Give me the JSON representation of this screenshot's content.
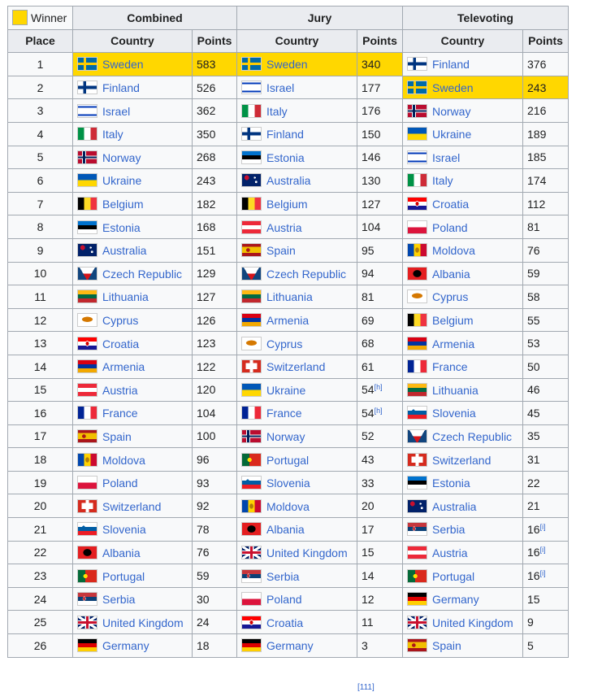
{
  "header_fragment": "",
  "footer_fragment": "[111]",
  "legend": {
    "label": "Winner",
    "color": "#ffd700"
  },
  "headers": {
    "combined": "Combined",
    "jury": "Jury",
    "televoting": "Televoting",
    "place": "Place",
    "country": "Country",
    "points": "Points"
  },
  "rows": [
    {
      "place": "1",
      "combined": {
        "country": "Sweden",
        "points": "583",
        "winner": true
      },
      "jury": {
        "country": "Sweden",
        "points": "340",
        "winner": true
      },
      "tele": {
        "country": "Finland",
        "points": "376"
      }
    },
    {
      "place": "2",
      "combined": {
        "country": "Finland",
        "points": "526"
      },
      "jury": {
        "country": "Israel",
        "points": "177"
      },
      "tele": {
        "country": "Sweden",
        "points": "243",
        "winner": true
      }
    },
    {
      "place": "3",
      "combined": {
        "country": "Israel",
        "points": "362"
      },
      "jury": {
        "country": "Italy",
        "points": "176"
      },
      "tele": {
        "country": "Norway",
        "points": "216"
      }
    },
    {
      "place": "4",
      "combined": {
        "country": "Italy",
        "points": "350"
      },
      "jury": {
        "country": "Finland",
        "points": "150"
      },
      "tele": {
        "country": "Ukraine",
        "points": "189"
      }
    },
    {
      "place": "5",
      "combined": {
        "country": "Norway",
        "points": "268"
      },
      "jury": {
        "country": "Estonia",
        "points": "146"
      },
      "tele": {
        "country": "Israel",
        "points": "185"
      }
    },
    {
      "place": "6",
      "combined": {
        "country": "Ukraine",
        "points": "243"
      },
      "jury": {
        "country": "Australia",
        "points": "130"
      },
      "tele": {
        "country": "Italy",
        "points": "174"
      }
    },
    {
      "place": "7",
      "combined": {
        "country": "Belgium",
        "points": "182"
      },
      "jury": {
        "country": "Belgium",
        "points": "127"
      },
      "tele": {
        "country": "Croatia",
        "points": "112"
      }
    },
    {
      "place": "8",
      "combined": {
        "country": "Estonia",
        "points": "168"
      },
      "jury": {
        "country": "Austria",
        "points": "104"
      },
      "tele": {
        "country": "Poland",
        "points": "81"
      }
    },
    {
      "place": "9",
      "combined": {
        "country": "Australia",
        "points": "151"
      },
      "jury": {
        "country": "Spain",
        "points": "95"
      },
      "tele": {
        "country": "Moldova",
        "points": "76"
      }
    },
    {
      "place": "10",
      "combined": {
        "country": "Czech Republic",
        "points": "129"
      },
      "jury": {
        "country": "Czech Republic",
        "points": "94"
      },
      "tele": {
        "country": "Albania",
        "points": "59"
      }
    },
    {
      "place": "11",
      "combined": {
        "country": "Lithuania",
        "points": "127"
      },
      "jury": {
        "country": "Lithuania",
        "points": "81"
      },
      "tele": {
        "country": "Cyprus",
        "points": "58"
      }
    },
    {
      "place": "12",
      "combined": {
        "country": "Cyprus",
        "points": "126"
      },
      "jury": {
        "country": "Armenia",
        "points": "69"
      },
      "tele": {
        "country": "Belgium",
        "points": "55"
      }
    },
    {
      "place": "13",
      "combined": {
        "country": "Croatia",
        "points": "123"
      },
      "jury": {
        "country": "Cyprus",
        "points": "68"
      },
      "tele": {
        "country": "Armenia",
        "points": "53"
      }
    },
    {
      "place": "14",
      "combined": {
        "country": "Armenia",
        "points": "122"
      },
      "jury": {
        "country": "Switzerland",
        "points": "61"
      },
      "tele": {
        "country": "France",
        "points": "50"
      }
    },
    {
      "place": "15",
      "combined": {
        "country": "Austria",
        "points": "120"
      },
      "jury": {
        "country": "Ukraine",
        "points": "54",
        "note": "[h]"
      },
      "tele": {
        "country": "Lithuania",
        "points": "46"
      }
    },
    {
      "place": "16",
      "combined": {
        "country": "France",
        "points": "104"
      },
      "jury": {
        "country": "France",
        "points": "54",
        "note": "[h]"
      },
      "tele": {
        "country": "Slovenia",
        "points": "45"
      }
    },
    {
      "place": "17",
      "combined": {
        "country": "Spain",
        "points": "100"
      },
      "jury": {
        "country": "Norway",
        "points": "52"
      },
      "tele": {
        "country": "Czech Republic",
        "points": "35"
      }
    },
    {
      "place": "18",
      "combined": {
        "country": "Moldova",
        "points": "96"
      },
      "jury": {
        "country": "Portugal",
        "points": "43"
      },
      "tele": {
        "country": "Switzerland",
        "points": "31"
      }
    },
    {
      "place": "19",
      "combined": {
        "country": "Poland",
        "points": "93"
      },
      "jury": {
        "country": "Slovenia",
        "points": "33"
      },
      "tele": {
        "country": "Estonia",
        "points": "22"
      }
    },
    {
      "place": "20",
      "combined": {
        "country": "Switzerland",
        "points": "92"
      },
      "jury": {
        "country": "Moldova",
        "points": "20"
      },
      "tele": {
        "country": "Australia",
        "points": "21"
      }
    },
    {
      "place": "21",
      "combined": {
        "country": "Slovenia",
        "points": "78"
      },
      "jury": {
        "country": "Albania",
        "points": "17"
      },
      "tele": {
        "country": "Serbia",
        "points": "16",
        "note": "[i]"
      }
    },
    {
      "place": "22",
      "combined": {
        "country": "Albania",
        "points": "76"
      },
      "jury": {
        "country": "United Kingdom",
        "points": "15"
      },
      "tele": {
        "country": "Austria",
        "points": "16",
        "note": "[i]"
      }
    },
    {
      "place": "23",
      "combined": {
        "country": "Portugal",
        "points": "59"
      },
      "jury": {
        "country": "Serbia",
        "points": "14"
      },
      "tele": {
        "country": "Portugal",
        "points": "16",
        "note": "[i]"
      }
    },
    {
      "place": "24",
      "combined": {
        "country": "Serbia",
        "points": "30"
      },
      "jury": {
        "country": "Poland",
        "points": "12"
      },
      "tele": {
        "country": "Germany",
        "points": "15"
      }
    },
    {
      "place": "25",
      "combined": {
        "country": "United Kingdom",
        "points": "24"
      },
      "jury": {
        "country": "Croatia",
        "points": "11"
      },
      "tele": {
        "country": "United Kingdom",
        "points": "9"
      }
    },
    {
      "place": "26",
      "combined": {
        "country": "Germany",
        "points": "18"
      },
      "jury": {
        "country": "Germany",
        "points": "3"
      },
      "tele": {
        "country": "Spain",
        "points": "5"
      }
    }
  ],
  "flags": {
    "Sweden": "linear-gradient(90deg, transparent 30%, #fecc00 30%, #fecc00 44%, transparent 44%), linear-gradient(180deg, #006aa7 40%, #fecc00 40%, #fecc00 60%, #006aa7 60%)",
    "Finland": "linear-gradient(90deg, transparent 28%, #003580 28%, #003580 44%, transparent 44%), linear-gradient(180deg, #ffffff 38%, #003580 38%, #003580 62%, #ffffff 62%)",
    "Israel": "linear-gradient(180deg, #ffffff 10%, #0038b8 10%, #0038b8 22%, #ffffff 22%, #ffffff 78%, #0038b8 78%, #0038b8 90%, #ffffff 90%)",
    "Italy": "linear-gradient(90deg, #009246 33.3%, #ffffff 33.3%, #ffffff 66.6%, #ce2b37 66.6%)",
    "Norway": "linear-gradient(90deg, transparent 27%, #00205b 27%, #00205b 39%, transparent 39%), linear-gradient(180deg, transparent 43%, #00205b 43%, #00205b 57%, transparent 57%), linear-gradient(90deg, transparent 22%, #ffffff 22%, #ffffff 44%, transparent 44%), linear-gradient(180deg, #ba0c2f 36%, #ffffff 36%, #ffffff 64%, #ba0c2f 64%)",
    "Ukraine": "linear-gradient(180deg, #0057b7 50%, #ffd700 50%)",
    "Belgium": "linear-gradient(90deg, #000000 33.3%, #fdda24 33.3%, #fdda24 66.6%, #ef3340 66.6%)",
    "Estonia": "linear-gradient(180deg, #0072ce 33.3%, #000000 33.3%, #000000 66.6%, #ffffff 66.6%)",
    "Australia": "radial-gradient(circle at 25% 30%, #c8102e 0 14%, transparent 15%), radial-gradient(circle at 75% 65%, #ffffff 0 7%, transparent 8%), radial-gradient(circle at 68% 30%, #ffffff 0 6%, transparent 7%), linear-gradient(180deg, #012169, #012169)",
    "Czech Republic": "linear-gradient(60deg, #11457e 34%, transparent 34%), linear-gradient(120deg, transparent 66%, #11457e 66%), linear-gradient(180deg, #ffffff 50%, #d7141a 50%)",
    "Lithuania": "linear-gradient(180deg, #fdb913 33.3%, #006a44 33.3%, #006a44 66.6%, #c1272d 66.6%)",
    "Cyprus": "radial-gradient(ellipse 30% 22% at 50% 45%, #d57800 0 90%, transparent 100%), linear-gradient(180deg, #ffffff, #ffffff)",
    "Croatia": "radial-gradient(ellipse 12% 22% at 50% 50%, #d40000 0 70%, #ffffff 71% 100%, transparent 101%), linear-gradient(180deg, #ff0000 33.3%, #ffffff 33.3%, #ffffff 66.6%, #171796 66.6%)",
    "Armenia": "linear-gradient(180deg, #d90012 33.3%, #0033a0 33.3%, #0033a0 66.6%, #f2a800 66.6%)",
    "Austria": "linear-gradient(180deg, #ed2939 33.3%, #ffffff 33.3%, #ffffff 66.6%, #ed2939 66.6%)",
    "France": "linear-gradient(90deg, #002395 33.3%, #ffffff 33.3%, #ffffff 66.6%, #ed2939 66.6%)",
    "Spain": "radial-gradient(ellipse 12% 18% at 32% 50%, #ad1519 0 80%, transparent 90%), linear-gradient(180deg, #aa151b 25%, #f1bf00 25%, #f1bf00 75%, #aa151b 75%)",
    "Moldova": "radial-gradient(ellipse 12% 25% at 50% 50%, #b07e09 0 80%, transparent 90%), linear-gradient(90deg, #0046ae 33.3%, #ffd200 33.3%, #ffd200 66.6%, #cc092f 66.6%)",
    "Poland": "linear-gradient(180deg, #ffffff 50%, #dc143c 50%)",
    "Switzerland": "linear-gradient(90deg, transparent 41%, #ffffff 41%, #ffffff 59%, transparent 59%), linear-gradient(180deg, #d52b1e 25%, transparent 25%, transparent 75%, #d52b1e 75%), linear-gradient(90deg, #d52b1e 20%, #ffffff 20%, #ffffff 80%, #d52b1e 80%)",
    "Slovenia": "radial-gradient(ellipse 10% 20% at 30% 40%, #005da4 0 80%, transparent 90%), linear-gradient(180deg, #ffffff 33.3%, #005da4 33.3%, #005da4 66.6%, #ed1c24 66.6%)",
    "Albania": "radial-gradient(ellipse 26% 34% at 50% 50%, #000000 0 80%, transparent 90%), linear-gradient(180deg, #e41e20, #e41e20)",
    "Portugal": "radial-gradient(circle at 40% 50%, #ffe000 0 16%, transparent 17%), linear-gradient(90deg, #046a38 40%, #da291c 40%)",
    "Serbia": "radial-gradient(ellipse 10% 22% at 33% 48%, #c6363c 0 70%, #ffffff 71% 80%, transparent 81%), linear-gradient(180deg, #c6363c 33.3%, #0c4076 33.3%, #0c4076 66.6%, #ffffff 66.6%)",
    "United Kingdom": "linear-gradient(90deg, transparent 43%, #c8102e 43%, #c8102e 57%, transparent 57%), linear-gradient(180deg, transparent 40%, #c8102e 40%, #c8102e 60%, transparent 60%), linear-gradient(90deg, transparent 38%, #ffffff 38%, #ffffff 62%, transparent 62%), linear-gradient(180deg, transparent 33%, #ffffff 33%, #ffffff 67%, transparent 67%), linear-gradient(34deg, transparent 44%, #ffffff 44%, #ffffff 56%, transparent 56%), linear-gradient(146deg, transparent 44%, #ffffff 44%, #ffffff 56%, transparent 56%), linear-gradient(180deg, #012169, #012169)",
    "Germany": "linear-gradient(180deg, #000000 33.3%, #dd0000 33.3%, #dd0000 66.6%, #ffce00 66.6%)"
  }
}
